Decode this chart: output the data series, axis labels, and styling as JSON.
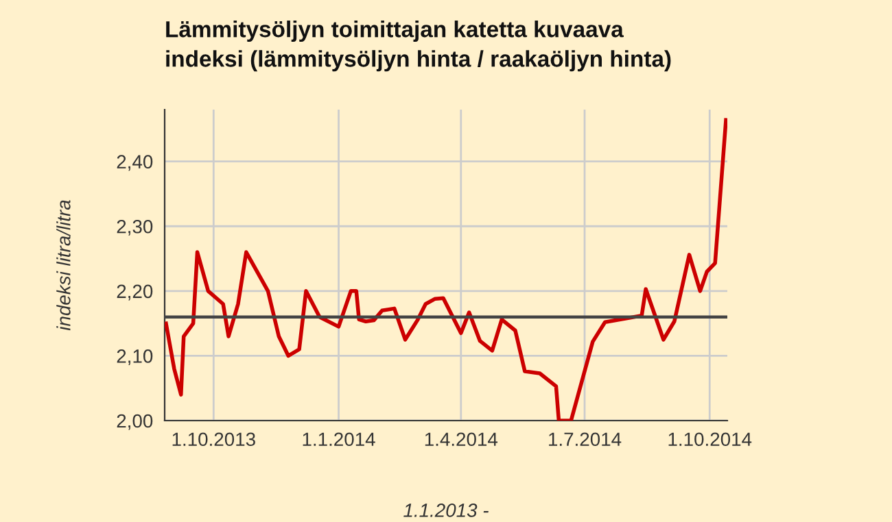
{
  "chart_data": {
    "type": "line",
    "title": "Lämmitysöljyn toimittajan katetta kuvaava\nindeksi (lämmitysöljyn hinta / raakaöljyn hinta)",
    "xlabel": "1.1.2013 -",
    "ylabel": "indeksi litra/litra",
    "x": [
      "2013-08-27",
      "2013-09-02",
      "2013-09-07",
      "2013-09-09",
      "2013-09-16",
      "2013-09-19",
      "2013-09-27",
      "2013-10-08",
      "2013-10-12",
      "2013-10-19",
      "2013-10-25",
      "2013-11-10",
      "2013-11-18",
      "2013-11-25",
      "2013-12-03",
      "2013-12-08",
      "2013-12-18",
      "2014-01-01",
      "2014-01-10",
      "2014-01-14",
      "2014-01-16",
      "2014-01-21",
      "2014-01-27",
      "2014-02-02",
      "2014-02-11",
      "2014-02-19",
      "2014-02-28",
      "2014-03-06",
      "2014-03-13",
      "2014-03-19",
      "2014-04-01",
      "2014-04-07",
      "2014-04-15",
      "2014-04-24",
      "2014-05-01",
      "2014-05-11",
      "2014-05-18",
      "2014-05-29",
      "2014-06-10",
      "2014-06-12",
      "2014-06-21",
      "2014-07-07",
      "2014-07-16",
      "2014-08-12",
      "2014-08-15",
      "2014-08-28",
      "2014-09-05",
      "2014-09-16",
      "2014-09-24",
      "2014-09-29",
      "2014-10-05",
      "2014-10-13"
    ],
    "series": [
      {
        "color": "#cc0000",
        "values": [
          2.15,
          2.08,
          2.04,
          2.13,
          2.15,
          2.26,
          2.2,
          2.18,
          2.13,
          2.18,
          2.26,
          2.2,
          2.13,
          2.1,
          2.11,
          2.2,
          2.16,
          2.145,
          2.2,
          2.2,
          2.156,
          2.153,
          2.155,
          2.17,
          2.173,
          2.125,
          2.155,
          2.18,
          2.188,
          2.189,
          2.135,
          2.167,
          2.123,
          2.108,
          2.156,
          2.139,
          2.076,
          2.073,
          2.053,
          2.0,
          2.0,
          2.122,
          2.152,
          2.162,
          2.203,
          2.125,
          2.153,
          2.256,
          2.2,
          2.23,
          2.243,
          2.464
        ]
      }
    ],
    "xlim": [
      "2013-08-26",
      "2014-10-14"
    ],
    "xticks": [
      {
        "value": "2013-10-01",
        "label": "1.10.2013"
      },
      {
        "value": "2014-01-01",
        "label": "1.1.2014"
      },
      {
        "value": "2014-04-01",
        "label": "1.4.2014"
      },
      {
        "value": "2014-07-01",
        "label": "1.7.2014"
      },
      {
        "value": "2014-10-01",
        "label": "1.10.2014"
      }
    ],
    "ylim": [
      2.0,
      2.48
    ],
    "yticks": [
      {
        "value": 2.0,
        "label": "2,00"
      },
      {
        "value": 2.1,
        "label": "2,10"
      },
      {
        "value": 2.2,
        "label": "2,20"
      },
      {
        "value": 2.3,
        "label": "2,30"
      },
      {
        "value": 2.4,
        "label": "2,40"
      }
    ],
    "ref_lines": [
      {
        "axis": "y",
        "value": 2.16,
        "color": "#444444"
      }
    ],
    "grid": true,
    "legend": false,
    "marker": "none",
    "line_style": "solid"
  }
}
